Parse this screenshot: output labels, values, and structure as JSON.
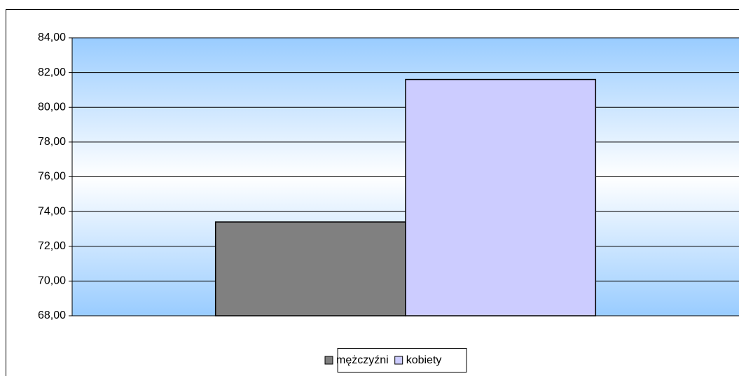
{
  "chart_data": {
    "type": "bar",
    "categories": [
      null
    ],
    "series": [
      {
        "name": "mężczyźni",
        "color": "#808080",
        "values": [
          73.4
        ]
      },
      {
        "name": "kobiety",
        "color": "#ccccff",
        "values": [
          81.6
        ]
      }
    ],
    "ylim": [
      68,
      84
    ],
    "yticks": [
      {
        "value": 68,
        "label": "68,00"
      },
      {
        "value": 70,
        "label": "70,00"
      },
      {
        "value": 72,
        "label": "72,00"
      },
      {
        "value": 74,
        "label": "74,00"
      },
      {
        "value": 76,
        "label": "76,00"
      },
      {
        "value": 78,
        "label": "78,00"
      },
      {
        "value": 80,
        "label": "80,00"
      },
      {
        "value": 82,
        "label": "82,00"
      },
      {
        "value": 84,
        "label": "84,00"
      }
    ],
    "grid": true,
    "legend": "bottom"
  }
}
